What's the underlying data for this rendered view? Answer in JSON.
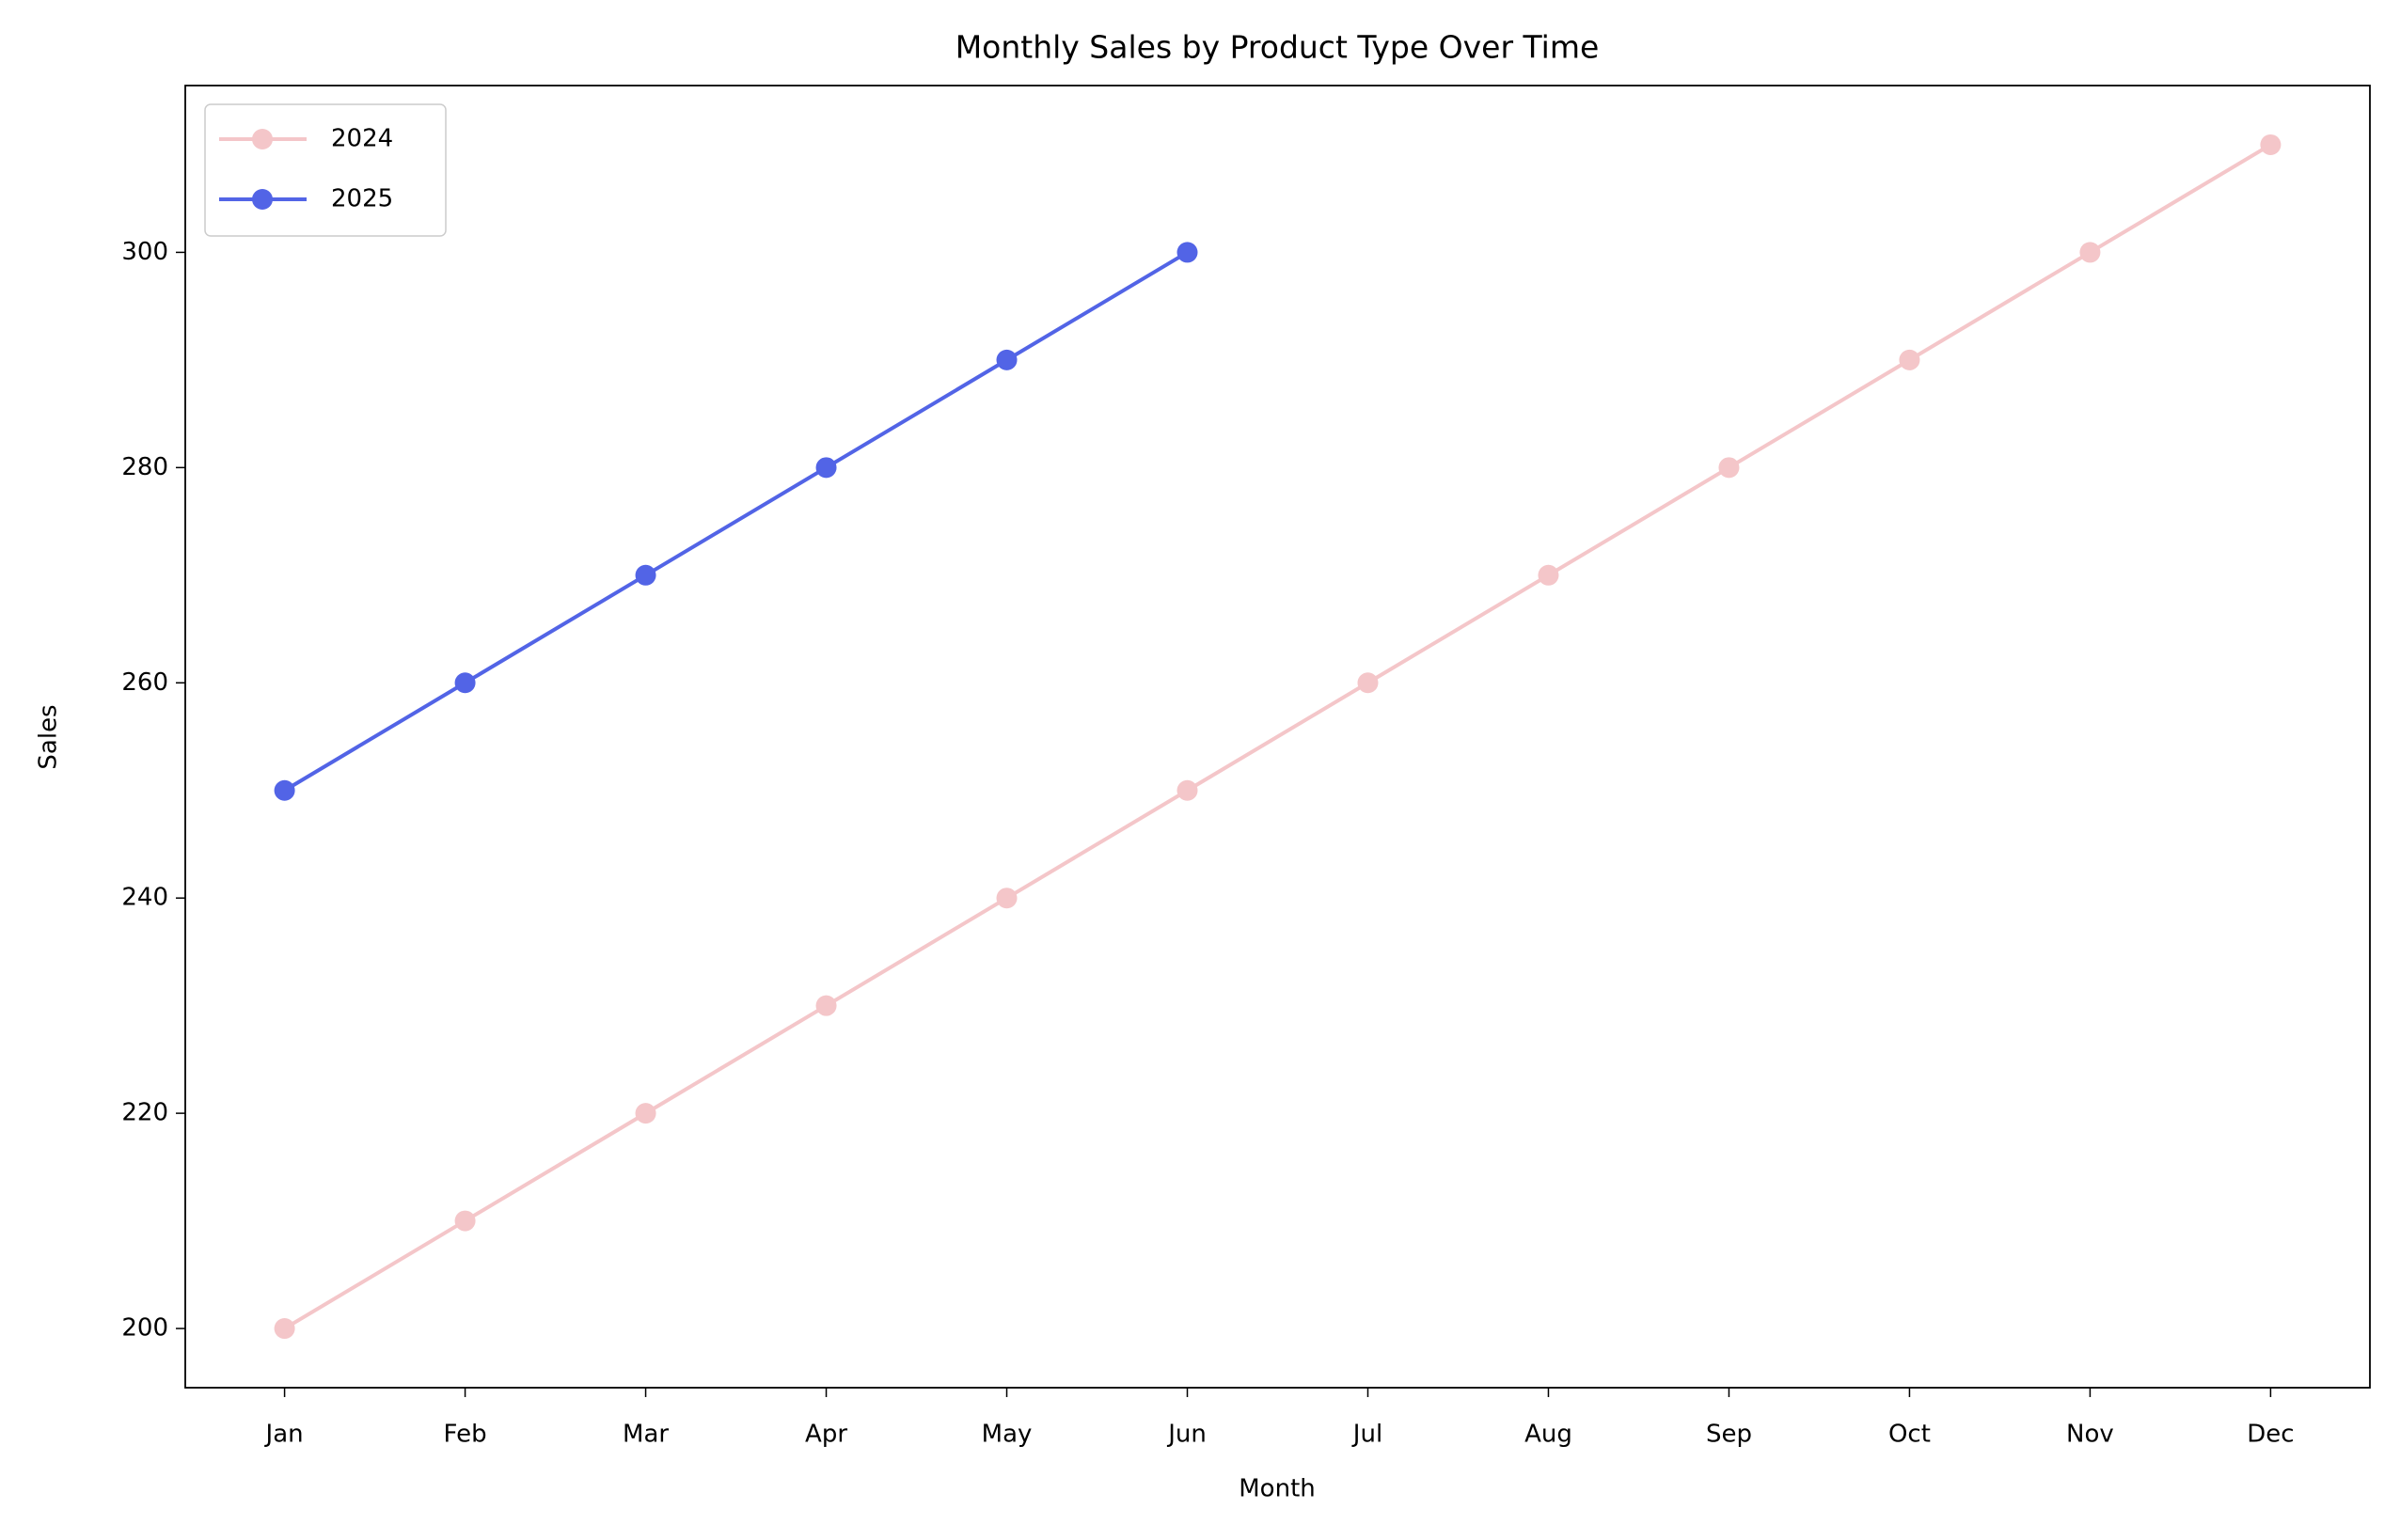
{
  "chart_data": {
    "type": "line",
    "title": "Monthly Sales by Product Type Over Time",
    "xlabel": "Month",
    "ylabel": "Sales",
    "categories": [
      "Jan",
      "Feb",
      "Mar",
      "Apr",
      "May",
      "Jun",
      "Jul",
      "Aug",
      "Sep",
      "Oct",
      "Nov",
      "Dec"
    ],
    "series": [
      {
        "name": "2024",
        "color": "#f4c6c9",
        "values": [
          200,
          210,
          220,
          230,
          240,
          250,
          260,
          270,
          280,
          290,
          300,
          310
        ]
      },
      {
        "name": "2025",
        "color": "#5264e6",
        "values": [
          250,
          260,
          270,
          280,
          290,
          300,
          null,
          null,
          null,
          null,
          null,
          null
        ]
      }
    ],
    "ylim": [
      194.5,
      315.5
    ],
    "yticks": [
      200,
      220,
      240,
      260,
      280,
      300
    ],
    "grid": false,
    "legend": "upper left"
  }
}
